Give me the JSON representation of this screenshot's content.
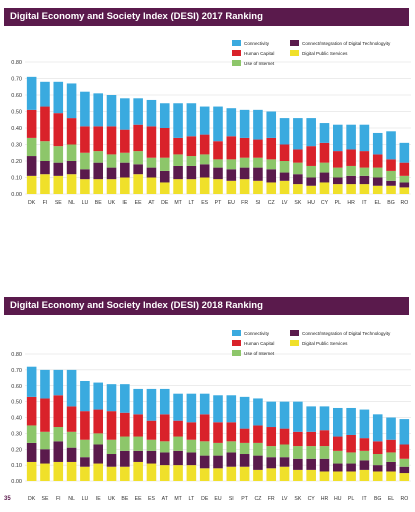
{
  "colors": {
    "title_bg": "#5a1a4c",
    "connectivity": "#3aaadf",
    "human_capital": "#d9222a",
    "use_of_internet": "#8dc66a",
    "integration_of_digital_technology": "#5a1a4c",
    "digital_public_services": "#f0e02a"
  },
  "page_number": "35",
  "chart_data": [
    {
      "type": "bar",
      "stacked": true,
      "title": "Digital Economy and Society Index (DESI) 2017 Ranking",
      "xlabel": "",
      "ylabel": "",
      "ylim": [
        0,
        0.8
      ],
      "yticks": [
        "0.00",
        "0.10",
        "0.20",
        "0.30",
        "0.40",
        "0.50",
        "0.60",
        "0.70",
        "0.80"
      ],
      "grid": true,
      "legend_position": "top-right",
      "categories": [
        "DK",
        "FI",
        "SE",
        "NL",
        "LU",
        "BE",
        "UK",
        "IE",
        "EE",
        "AT",
        "DE",
        "MT",
        "LT",
        "ES",
        "PT",
        "EU",
        "FR",
        "SI",
        "CZ",
        "LV",
        "SK",
        "HU",
        "CY",
        "PL",
        "HR",
        "IT",
        "EL",
        "BG",
        "RO"
      ],
      "series": [
        {
          "name": "Digital Public Services",
          "values": [
            0.11,
            0.12,
            0.11,
            0.12,
            0.09,
            0.09,
            0.09,
            0.1,
            0.12,
            0.1,
            0.07,
            0.09,
            0.09,
            0.1,
            0.09,
            0.08,
            0.09,
            0.08,
            0.07,
            0.08,
            0.06,
            0.05,
            0.07,
            0.06,
            0.06,
            0.06,
            0.05,
            0.05,
            0.04
          ]
        },
        {
          "name": "Connect/Integration of Digital Technology",
          "values": [
            0.12,
            0.08,
            0.08,
            0.08,
            0.06,
            0.1,
            0.07,
            0.09,
            0.06,
            0.06,
            0.07,
            0.08,
            0.08,
            0.08,
            0.07,
            0.07,
            0.07,
            0.08,
            0.08,
            0.05,
            0.06,
            0.05,
            0.06,
            0.04,
            0.05,
            0.05,
            0.05,
            0.03,
            0.03
          ]
        },
        {
          "name": "Use of Internet",
          "values": [
            0.11,
            0.12,
            0.1,
            0.1,
            0.1,
            0.07,
            0.08,
            0.06,
            0.08,
            0.06,
            0.08,
            0.07,
            0.06,
            0.06,
            0.05,
            0.06,
            0.06,
            0.06,
            0.06,
            0.07,
            0.07,
            0.07,
            0.06,
            0.06,
            0.06,
            0.05,
            0.06,
            0.06,
            0.04
          ]
        },
        {
          "name": "Human Capital",
          "values": [
            0.17,
            0.21,
            0.2,
            0.16,
            0.16,
            0.15,
            0.17,
            0.14,
            0.16,
            0.19,
            0.18,
            0.1,
            0.12,
            0.12,
            0.11,
            0.14,
            0.12,
            0.11,
            0.13,
            0.1,
            0.08,
            0.12,
            0.12,
            0.1,
            0.1,
            0.1,
            0.08,
            0.07,
            0.08
          ]
        },
        {
          "name": "Connectivity",
          "values": [
            0.2,
            0.15,
            0.19,
            0.21,
            0.21,
            0.2,
            0.19,
            0.19,
            0.16,
            0.16,
            0.15,
            0.21,
            0.2,
            0.17,
            0.21,
            0.17,
            0.17,
            0.18,
            0.16,
            0.16,
            0.19,
            0.17,
            0.12,
            0.16,
            0.15,
            0.16,
            0.13,
            0.17,
            0.12
          ]
        }
      ],
      "legend": [
        {
          "name": "Connectivity",
          "color_key": "connectivity"
        },
        {
          "name": "Connect/Integration of Digital Technologyity",
          "color_key": "integration_of_digital_technology"
        },
        {
          "name": "Human Capital",
          "color_key": "human_capital"
        },
        {
          "name": "Digital Public Services",
          "color_key": "digital_public_services"
        },
        {
          "name": "Use of Internet",
          "color_key": "use_of_internet"
        }
      ]
    },
    {
      "type": "bar",
      "stacked": true,
      "title": "Digital Economy and Society Index (DESI) 2018 Ranking",
      "xlabel": "",
      "ylabel": "",
      "ylim": [
        0,
        0.8
      ],
      "yticks": [
        "0.00",
        "0.10",
        "0.20",
        "0.30",
        "0.40",
        "0.50",
        "0.60",
        "0.70",
        "0.80"
      ],
      "grid": true,
      "legend_position": "top-right",
      "categories": [
        "DK",
        "SE",
        "FI",
        "NL",
        "LU",
        "IE",
        "UK",
        "BE",
        "EE",
        "ES",
        "AT",
        "MT",
        "LT",
        "DE",
        "EU",
        "SI",
        "PT",
        "CZ",
        "FR",
        "LV",
        "SK",
        "CY",
        "HR",
        "HU",
        "PL",
        "IT",
        "BG",
        "EL",
        "RO"
      ],
      "series": [
        {
          "name": "Digital Public Services",
          "values": [
            0.12,
            0.11,
            0.12,
            0.12,
            0.09,
            0.11,
            0.09,
            0.09,
            0.12,
            0.11,
            0.1,
            0.1,
            0.1,
            0.08,
            0.08,
            0.09,
            0.09,
            0.07,
            0.08,
            0.09,
            0.07,
            0.07,
            0.06,
            0.06,
            0.06,
            0.07,
            0.06,
            0.06,
            0.05
          ]
        },
        {
          "name": "Connect/Integration of Digital Technology",
          "values": [
            0.12,
            0.09,
            0.13,
            0.09,
            0.06,
            0.12,
            0.08,
            0.1,
            0.07,
            0.08,
            0.08,
            0.09,
            0.08,
            0.08,
            0.08,
            0.09,
            0.08,
            0.09,
            0.07,
            0.06,
            0.07,
            0.07,
            0.08,
            0.05,
            0.05,
            0.06,
            0.04,
            0.06,
            0.04
          ]
        },
        {
          "name": "Use of Internet",
          "values": [
            0.11,
            0.11,
            0.09,
            0.1,
            0.11,
            0.07,
            0.09,
            0.09,
            0.09,
            0.07,
            0.07,
            0.09,
            0.08,
            0.09,
            0.08,
            0.07,
            0.07,
            0.08,
            0.07,
            0.08,
            0.08,
            0.08,
            0.08,
            0.08,
            0.07,
            0.06,
            0.07,
            0.06,
            0.05
          ]
        },
        {
          "name": "Human Capital",
          "values": [
            0.18,
            0.21,
            0.2,
            0.16,
            0.18,
            0.15,
            0.18,
            0.15,
            0.14,
            0.12,
            0.17,
            0.1,
            0.11,
            0.17,
            0.13,
            0.12,
            0.09,
            0.11,
            0.12,
            0.1,
            0.09,
            0.09,
            0.1,
            0.09,
            0.11,
            0.08,
            0.08,
            0.08,
            0.09
          ]
        },
        {
          "name": "Connectivity",
          "values": [
            0.19,
            0.18,
            0.16,
            0.23,
            0.19,
            0.17,
            0.17,
            0.18,
            0.16,
            0.2,
            0.16,
            0.17,
            0.18,
            0.13,
            0.17,
            0.17,
            0.2,
            0.17,
            0.16,
            0.17,
            0.19,
            0.16,
            0.15,
            0.18,
            0.17,
            0.18,
            0.17,
            0.14,
            0.16
          ]
        }
      ],
      "legend": [
        {
          "name": "Connectivity",
          "color_key": "connectivity"
        },
        {
          "name": "Connect/Integration of Digital Technologyity",
          "color_key": "integration_of_digital_technology"
        },
        {
          "name": "Human Capital",
          "color_key": "human_capital"
        },
        {
          "name": "Digital Public Services",
          "color_key": "digital_public_services"
        },
        {
          "name": "Use of Internet",
          "color_key": "use_of_internet"
        }
      ]
    }
  ]
}
